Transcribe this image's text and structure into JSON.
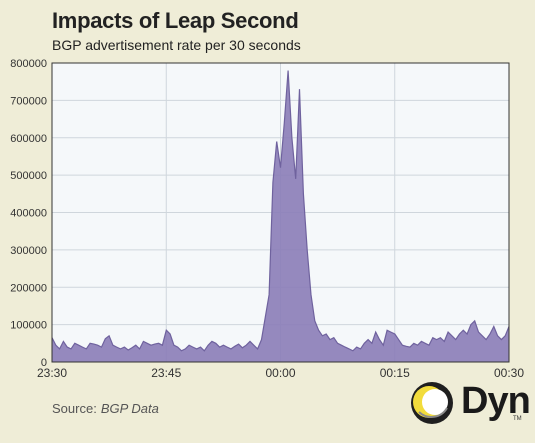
{
  "chart_data": {
    "type": "area",
    "title": "Impacts of Leap Second",
    "subtitle": "BGP advertisement rate per 30 seconds",
    "xlabel": "",
    "ylabel": "",
    "ylim": [
      0,
      800000
    ],
    "yticks": [
      0,
      100000,
      200000,
      300000,
      400000,
      500000,
      600000,
      700000,
      800000
    ],
    "ytick_labels": [
      "0",
      "100000",
      "200000",
      "300000",
      "400000",
      "500000",
      "600000",
      "700000",
      "800000"
    ],
    "xtick_labels": [
      "23:30",
      "23:45",
      "00:00",
      "00:15",
      "00:30"
    ],
    "xtick_minutes": [
      0,
      15,
      30,
      45,
      60
    ],
    "xlim_minutes": [
      0,
      60
    ],
    "grid": true,
    "color": "#8c7fb8",
    "x_minutes": [
      0,
      0.5,
      1,
      1.5,
      2,
      2.5,
      3,
      3.5,
      4,
      4.5,
      5,
      5.5,
      6,
      6.5,
      7,
      7.5,
      8,
      8.5,
      9,
      9.5,
      10,
      10.5,
      11,
      11.5,
      12,
      12.5,
      13,
      13.5,
      14,
      14.5,
      15,
      15.5,
      16,
      16.5,
      17,
      17.5,
      18,
      18.5,
      19,
      19.5,
      20,
      20.5,
      21,
      21.5,
      22,
      22.5,
      23,
      23.5,
      24,
      24.5,
      25,
      25.5,
      26,
      26.5,
      27,
      27.5,
      28,
      28.5,
      29,
      29.5,
      30,
      30.5,
      31,
      31.5,
      32,
      32.5,
      33,
      33.5,
      34,
      34.5,
      35,
      35.5,
      36,
      36.5,
      37,
      37.5,
      38,
      38.5,
      39,
      39.5,
      40,
      40.5,
      41,
      41.5,
      42,
      42.5,
      43,
      43.5,
      44,
      44.5,
      45,
      45.5,
      46,
      46.5,
      47,
      47.5,
      48,
      48.5,
      49,
      49.5,
      50,
      50.5,
      51,
      51.5,
      52,
      52.5,
      53,
      53.5,
      54,
      54.5,
      55,
      55.5,
      56,
      56.5,
      57,
      57.5,
      58,
      58.5,
      59,
      59.5,
      60
    ],
    "values": [
      65000,
      45000,
      35000,
      55000,
      40000,
      35000,
      50000,
      45000,
      40000,
      35000,
      50000,
      48000,
      45000,
      40000,
      62000,
      70000,
      45000,
      40000,
      35000,
      40000,
      32000,
      38000,
      45000,
      35000,
      55000,
      50000,
      45000,
      48000,
      50000,
      45000,
      85000,
      75000,
      45000,
      40000,
      30000,
      35000,
      45000,
      40000,
      35000,
      40000,
      30000,
      45000,
      55000,
      50000,
      40000,
      45000,
      40000,
      35000,
      42000,
      48000,
      38000,
      45000,
      55000,
      45000,
      35000,
      60000,
      120000,
      180000,
      480000,
      590000,
      520000,
      640000,
      780000,
      600000,
      490000,
      730000,
      450000,
      300000,
      180000,
      110000,
      85000,
      70000,
      75000,
      60000,
      65000,
      50000,
      45000,
      40000,
      35000,
      30000,
      40000,
      35000,
      50000,
      60000,
      50000,
      80000,
      60000,
      45000,
      85000,
      80000,
      75000,
      60000,
      45000,
      42000,
      40000,
      50000,
      45000,
      55000,
      50000,
      45000,
      65000,
      60000,
      65000,
      55000,
      80000,
      70000,
      60000,
      75000,
      85000,
      75000,
      100000,
      110000,
      80000,
      70000,
      60000,
      75000,
      95000,
      70000,
      60000,
      70000,
      95000
    ]
  },
  "source": {
    "label": "Source:",
    "value": "BGP Data"
  },
  "logo": {
    "brand": "Dyn",
    "tm": "TM",
    "colors": {
      "ring_dark": "#1f1f1f",
      "ring_light": "#f2dc3c",
      "ring_gray": "#8a8a8a"
    }
  }
}
